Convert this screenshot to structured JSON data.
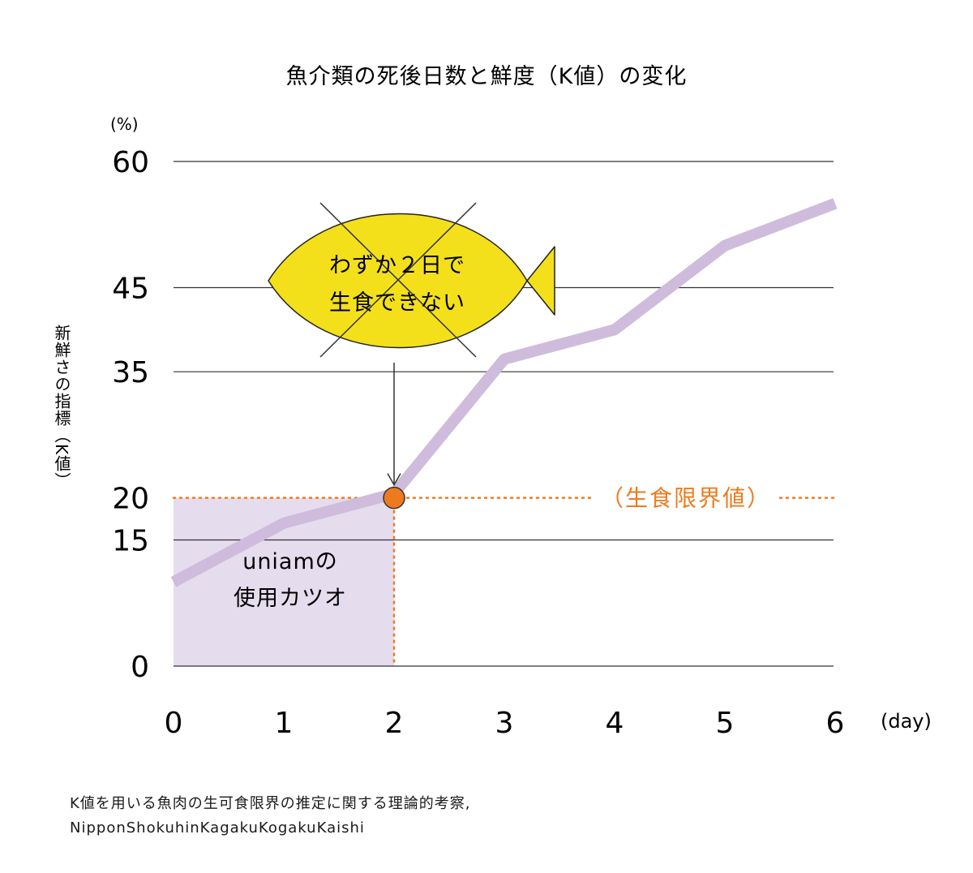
{
  "chart_data": {
    "type": "line",
    "title": "魚介類の死後日数と鮮度（K値）の変化",
    "ylabel": "新鮮さの指標（K値）",
    "yunit": "(%)",
    "xunit": "(day)",
    "x": [
      0,
      1,
      2,
      3,
      4,
      5,
      6
    ],
    "y_ticks": [
      0,
      15,
      20,
      35,
      45,
      60
    ],
    "series": [
      {
        "values": [
          10,
          17,
          20.5,
          36.5,
          40,
          50,
          55
        ]
      }
    ],
    "xlim": [
      0,
      6
    ],
    "ylim": [
      0,
      60
    ],
    "grid": true,
    "limit_line": {
      "value": 20,
      "label": "（生食限界値）"
    },
    "marker": {
      "x": 2,
      "y": 20
    },
    "shaded_region": {
      "x": [
        0,
        2
      ],
      "y": [
        0,
        20
      ],
      "label_lines": [
        "uniamの",
        "使用カツオ"
      ]
    },
    "callout": {
      "lines": [
        "わずか２日で",
        "生食できない"
      ],
      "points_to_x": 2
    },
    "colors": {
      "line": "#cfbcdc",
      "shade": "#e5dced",
      "limit": "#ee7a1f",
      "fish": "#f3e01a",
      "grid": "#333333"
    }
  },
  "source": {
    "line1": "K値を用いる魚肉の生可食限界の推定に関する理論的考察,",
    "line2": "NipponShokuhinKagakuKogakuKaishi"
  }
}
